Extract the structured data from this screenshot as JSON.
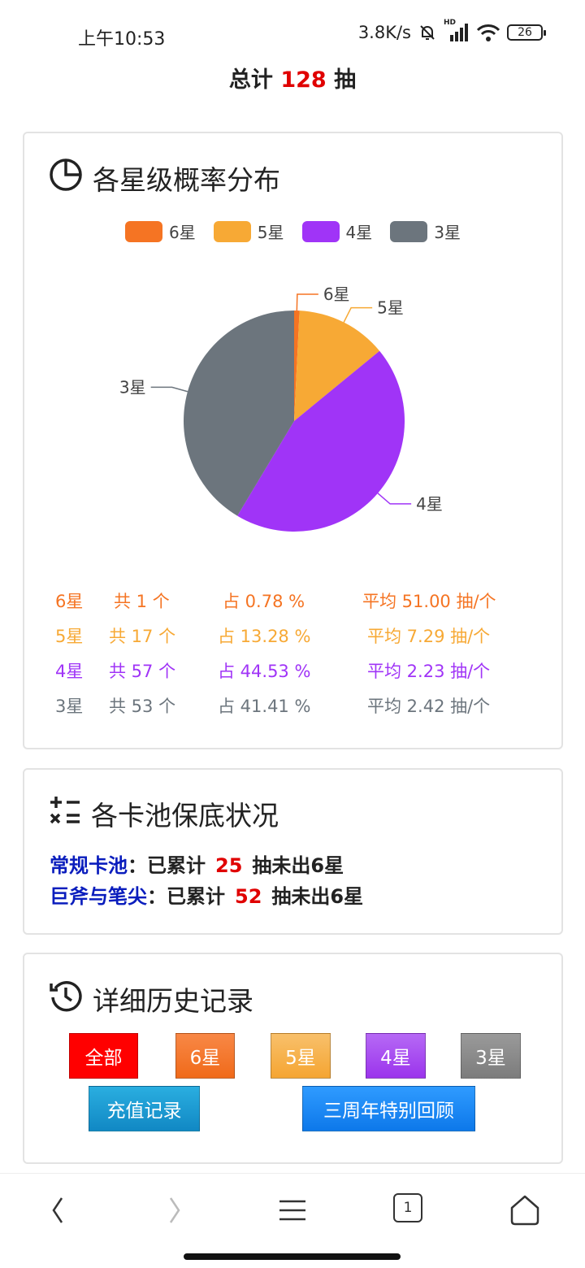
{
  "status_bar": {
    "time": "上午10:53",
    "speed": "3.8K/s",
    "hd_label": "HD",
    "battery": "26"
  },
  "header": {
    "total_prefix": "总计",
    "total_count": "128",
    "total_suffix": "抽"
  },
  "distribution": {
    "title": "各星级概率分布",
    "icon": "pie-chart-icon",
    "legend": [
      {
        "label": "6星",
        "color": "#f57423"
      },
      {
        "label": "5星",
        "color": "#f7a935"
      },
      {
        "label": "4星",
        "color": "#a034f7"
      },
      {
        "label": "3星",
        "color": "#6c757d"
      }
    ],
    "stats": [
      {
        "star": "6星",
        "count": "共 1 个",
        "ratio": "占 0.78 %",
        "avg": "平均 51.00 抽/个",
        "color": "#f57423"
      },
      {
        "star": "5星",
        "count": "共 17 个",
        "ratio": "占 13.28 %",
        "avg": "平均 7.29 抽/个",
        "color": "#f7a935"
      },
      {
        "star": "4星",
        "count": "共 57 个",
        "ratio": "占 44.53 %",
        "avg": "平均 2.23 抽/个",
        "color": "#a034f7"
      },
      {
        "star": "3星",
        "count": "共 53 个",
        "ratio": "占 41.41 %",
        "avg": "平均 2.42 抽/个",
        "color": "#6c757d"
      }
    ]
  },
  "chart_data": {
    "type": "pie",
    "categories": [
      "6星",
      "5星",
      "4星",
      "3星"
    ],
    "values": [
      1,
      17,
      57,
      53
    ],
    "colors": [
      "#f57423",
      "#f7a935",
      "#a034f7",
      "#6c757d"
    ],
    "title": "",
    "legend_position": "top"
  },
  "pity": {
    "title": "各卡池保底状况",
    "icon": "calculator-ops-icon",
    "rows": [
      {
        "pool": "常规卡池",
        "prefix": "：已累计",
        "count": "25",
        "suffix": "抽未出6星"
      },
      {
        "pool": "巨斧与笔尖",
        "prefix": "：已累计",
        "count": "52",
        "suffix": "抽未出6星"
      }
    ]
  },
  "history": {
    "title": "详细历史记录",
    "icon": "history-clock-icon",
    "filters": [
      {
        "label": "全部",
        "color": "#ff0000"
      },
      {
        "label": "6星",
        "color": "#f57423"
      },
      {
        "label": "5星",
        "color": "#f7b04a"
      },
      {
        "label": "4星",
        "color": "#a645f0"
      },
      {
        "label": "3星",
        "color": "#888888"
      }
    ],
    "extra_buttons": [
      {
        "label": "充值记录",
        "color": "#1a9bd4"
      },
      {
        "label": "三周年特别回顾",
        "color": "#1586f5"
      }
    ]
  },
  "nav": {
    "tab_count": "1"
  }
}
